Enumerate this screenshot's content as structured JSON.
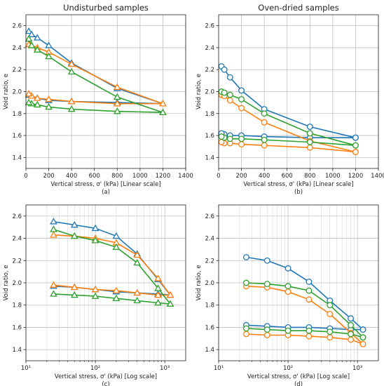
{
  "chart_data": [
    {
      "id": "a",
      "type": "line",
      "title": "Undisturbed samples",
      "caption": "(a)",
      "xlabel": "Vertical stress, σ' (kPa) [Linear scale]",
      "ylabel": "Void ratio, e",
      "xscale": "linear",
      "xlim": [
        0,
        1400
      ],
      "ylim": [
        1.3,
        2.7
      ],
      "xticks": [
        0,
        200,
        400,
        600,
        800,
        1000,
        1200,
        1400
      ],
      "yticks": [
        1.4,
        1.6,
        1.8,
        2.0,
        2.2,
        2.4,
        2.6
      ],
      "grid": true,
      "marker": "triangle",
      "series": [
        {
          "color": "#1f77b4",
          "loading": {
            "x": [
              25,
              50,
              100,
              200,
              400,
              800,
              1200
            ],
            "y": [
              2.55,
              2.52,
              2.49,
              2.42,
              2.26,
              2.03,
              1.89
            ]
          },
          "unloading": {
            "x": [
              1200,
              800,
              400,
              200,
              100,
              50,
              25
            ],
            "y": [
              1.89,
              1.9,
              1.91,
              1.92,
              1.94,
              1.96,
              1.97
            ]
          }
        },
        {
          "color": "#ff7f0e",
          "loading": {
            "x": [
              25,
              50,
              100,
              200,
              400,
              800,
              1200
            ],
            "y": [
              2.43,
              2.42,
              2.4,
              2.36,
              2.25,
              2.04,
              1.89
            ]
          },
          "unloading": {
            "x": [
              1200,
              800,
              400,
              200,
              100,
              50,
              25
            ],
            "y": [
              1.89,
              1.89,
              1.91,
              1.93,
              1.94,
              1.96,
              1.98
            ]
          }
        },
        {
          "color": "#2ca02c",
          "loading": {
            "x": [
              25,
              50,
              100,
              200,
              400,
              800,
              1200
            ],
            "y": [
              2.48,
              2.42,
              2.38,
              2.32,
              2.18,
              1.95,
              1.81
            ]
          },
          "unloading": {
            "x": [
              1200,
              800,
              400,
              200,
              100,
              50,
              25
            ],
            "y": [
              1.81,
              1.82,
              1.84,
              1.86,
              1.88,
              1.89,
              1.9
            ]
          }
        }
      ]
    },
    {
      "id": "b",
      "type": "line",
      "title": "Oven-dried samples",
      "caption": "(b)",
      "xlabel": "Vertical stress, σ' (kPa) [Linear scale]",
      "ylabel": "Void ratio, e",
      "xscale": "linear",
      "xlim": [
        0,
        1400
      ],
      "ylim": [
        1.3,
        2.7
      ],
      "xticks": [
        0,
        200,
        400,
        600,
        800,
        1000,
        1200,
        1400
      ],
      "yticks": [
        1.4,
        1.6,
        1.8,
        2.0,
        2.2,
        2.4,
        2.6
      ],
      "grid": true,
      "marker": "circle",
      "series": [
        {
          "color": "#1f77b4",
          "loading": {
            "x": [
              25,
              50,
              100,
              200,
              400,
              800,
              1200
            ],
            "y": [
              2.23,
              2.2,
              2.13,
              2.01,
              1.84,
              1.68,
              1.58
            ]
          },
          "unloading": {
            "x": [
              1200,
              800,
              400,
              200,
              100,
              50,
              25
            ],
            "y": [
              1.58,
              1.58,
              1.59,
              1.6,
              1.6,
              1.61,
              1.62
            ]
          }
        },
        {
          "color": "#ff7f0e",
          "loading": {
            "x": [
              25,
              50,
              100,
              200,
              400,
              800,
              1200
            ],
            "y": [
              1.97,
              1.96,
              1.92,
              1.85,
              1.72,
              1.55,
              1.45
            ]
          },
          "unloading": {
            "x": [
              1200,
              800,
              400,
              200,
              100,
              50,
              25
            ],
            "y": [
              1.45,
              1.49,
              1.51,
              1.52,
              1.53,
              1.53,
              1.54
            ]
          }
        },
        {
          "color": "#2ca02c",
          "loading": {
            "x": [
              25,
              50,
              100,
              200,
              400,
              800,
              1200
            ],
            "y": [
              2.0,
              1.99,
              1.97,
              1.93,
              1.8,
              1.62,
              1.51
            ]
          },
          "unloading": {
            "x": [
              1200,
              800,
              400,
              200,
              100,
              50,
              25
            ],
            "y": [
              1.51,
              1.54,
              1.56,
              1.57,
              1.57,
              1.58,
              1.59
            ]
          }
        }
      ]
    },
    {
      "id": "c",
      "type": "line",
      "title": "",
      "caption": "(c)",
      "xlabel": "Vertical stress, σ' (kPa) [Log scale]",
      "ylabel": "Void ratio, e",
      "xscale": "log",
      "xlim": [
        10,
        2000
      ],
      "ylim": [
        1.3,
        2.7
      ],
      "xticks": [
        10,
        100,
        1000
      ],
      "xticklabels": [
        "10¹",
        "10²",
        "10³"
      ],
      "yticks": [
        1.4,
        1.6,
        1.8,
        2.0,
        2.2,
        2.4,
        2.6
      ],
      "grid": true,
      "marker": "triangle",
      "series": [
        {
          "color": "#1f77b4",
          "loading": {
            "x": [
              25,
              50,
              100,
              200,
              400,
              800,
              1200
            ],
            "y": [
              2.55,
              2.52,
              2.49,
              2.42,
              2.26,
              2.03,
              1.89
            ]
          },
          "unloading": {
            "x": [
              1200,
              800,
              400,
              200,
              100,
              50,
              25
            ],
            "y": [
              1.89,
              1.9,
              1.91,
              1.92,
              1.94,
              1.96,
              1.97
            ]
          }
        },
        {
          "color": "#ff7f0e",
          "loading": {
            "x": [
              25,
              50,
              100,
              200,
              400,
              800,
              1200
            ],
            "y": [
              2.43,
              2.42,
              2.4,
              2.36,
              2.25,
              2.04,
              1.89
            ]
          },
          "unloading": {
            "x": [
              1200,
              800,
              400,
              200,
              100,
              50,
              25
            ],
            "y": [
              1.89,
              1.89,
              1.91,
              1.93,
              1.94,
              1.96,
              1.98
            ]
          }
        },
        {
          "color": "#2ca02c",
          "loading": {
            "x": [
              25,
              50,
              100,
              200,
              400,
              800,
              1200
            ],
            "y": [
              2.48,
              2.42,
              2.38,
              2.32,
              2.18,
              1.95,
              1.81
            ]
          },
          "unloading": {
            "x": [
              1200,
              800,
              400,
              200,
              100,
              50,
              25
            ],
            "y": [
              1.81,
              1.82,
              1.84,
              1.86,
              1.88,
              1.89,
              1.9
            ]
          }
        }
      ]
    },
    {
      "id": "d",
      "type": "line",
      "title": "",
      "caption": "(d)",
      "xlabel": "Vertical stress, σ' (kPa) [Log scale]",
      "ylabel": "Void ratio, e",
      "xscale": "log",
      "xlim": [
        10,
        2000
      ],
      "ylim": [
        1.3,
        2.7
      ],
      "xticks": [
        10,
        100,
        1000
      ],
      "xticklabels": [
        "10¹",
        "10²",
        "10³"
      ],
      "yticks": [
        1.4,
        1.6,
        1.8,
        2.0,
        2.2,
        2.4,
        2.6
      ],
      "grid": true,
      "marker": "circle",
      "series": [
        {
          "color": "#1f77b4",
          "loading": {
            "x": [
              25,
              50,
              100,
              200,
              400,
              800,
              1200
            ],
            "y": [
              2.23,
              2.2,
              2.13,
              2.01,
              1.84,
              1.68,
              1.58
            ]
          },
          "unloading": {
            "x": [
              1200,
              800,
              400,
              200,
              100,
              50,
              25
            ],
            "y": [
              1.58,
              1.58,
              1.59,
              1.6,
              1.6,
              1.61,
              1.62
            ]
          }
        },
        {
          "color": "#ff7f0e",
          "loading": {
            "x": [
              25,
              50,
              100,
              200,
              400,
              800,
              1200
            ],
            "y": [
              1.97,
              1.96,
              1.92,
              1.85,
              1.72,
              1.55,
              1.45
            ]
          },
          "unloading": {
            "x": [
              1200,
              800,
              400,
              200,
              100,
              50,
              25
            ],
            "y": [
              1.45,
              1.49,
              1.51,
              1.52,
              1.53,
              1.53,
              1.54
            ]
          }
        },
        {
          "color": "#2ca02c",
          "loading": {
            "x": [
              25,
              50,
              100,
              200,
              400,
              800,
              1200
            ],
            "y": [
              2.0,
              1.99,
              1.97,
              1.93,
              1.8,
              1.62,
              1.51
            ]
          },
          "unloading": {
            "x": [
              1200,
              800,
              400,
              200,
              100,
              50,
              25
            ],
            "y": [
              1.51,
              1.54,
              1.56,
              1.57,
              1.57,
              1.58,
              1.59
            ]
          }
        }
      ]
    }
  ]
}
